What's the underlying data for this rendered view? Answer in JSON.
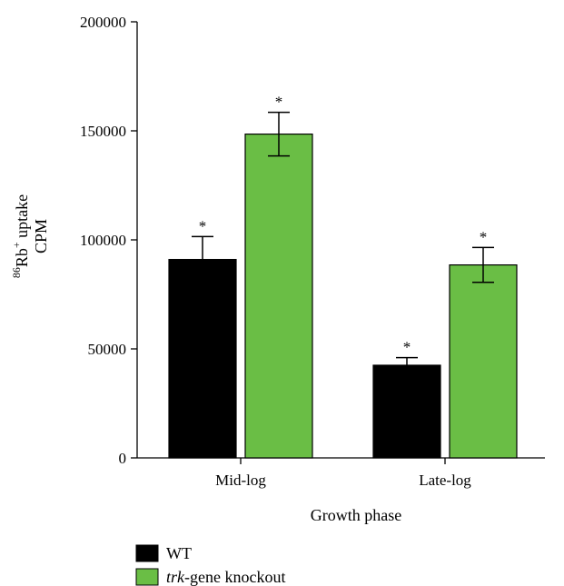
{
  "chart_data": {
    "type": "bar",
    "categories": [
      "Mid-log",
      "Late-log"
    ],
    "series": [
      {
        "name": "WT",
        "color": "#000000",
        "values": [
          91000,
          42500
        ],
        "errors": [
          10500,
          3500
        ],
        "markers": [
          "*",
          "*"
        ]
      },
      {
        "name": "trk-gene knockout",
        "color": "#6abe45",
        "values": [
          148500,
          88500
        ],
        "errors": [
          10000,
          8000
        ],
        "markers": [
          "*",
          "*"
        ]
      }
    ],
    "xlabel": "Growth phase",
    "ylabel_lines": [
      "Rb",
      " uptake",
      "CPM"
    ],
    "ylabel_sup_pre": "86",
    "ylabel_sup_post": "+",
    "ylim": [
      0,
      200000
    ],
    "yticks": [
      0,
      50000,
      100000,
      150000,
      200000
    ],
    "grid": false,
    "legend_position": "bottom-left"
  }
}
